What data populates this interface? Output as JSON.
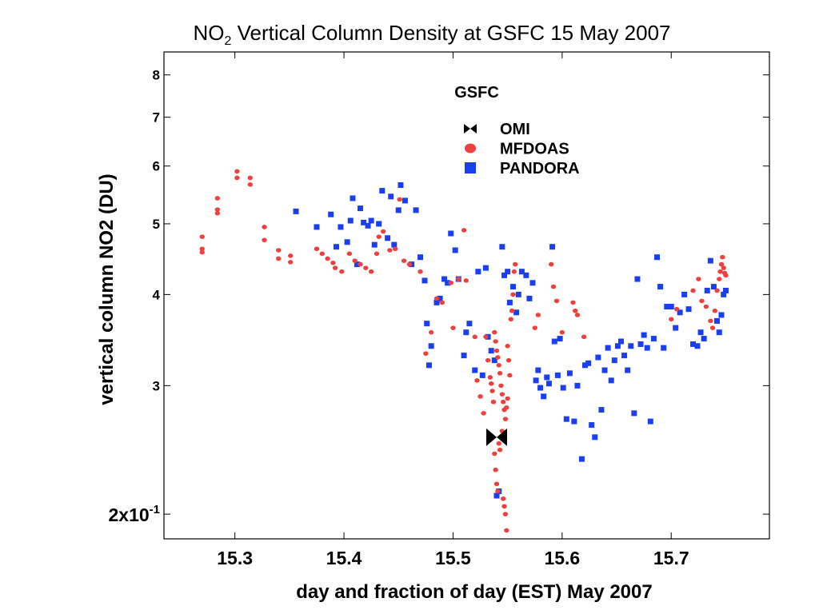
{
  "chart_data": {
    "type": "scatter",
    "title": "NO2 Vertical Column Density at GSFC   15 May 2007",
    "title_parts": {
      "pre": "NO",
      "sub": "2",
      "post": " Vertical Column Density at GSFC   15 May 2007"
    },
    "xlabel": "day and fraction of day (EST) May 2007",
    "ylabel": "vertical column NO2 (DU)",
    "xlim": [
      15.235,
      15.79
    ],
    "ylim": [
      1.85,
      8.6
    ],
    "y_scale": "log",
    "grid": false,
    "legend_title": "GSFC",
    "legend_position": "top-center",
    "x_ticks": [
      {
        "value": 15.3,
        "label": "15.3"
      },
      {
        "value": 15.4,
        "label": "15.4"
      },
      {
        "value": 15.5,
        "label": "15.5"
      },
      {
        "value": 15.6,
        "label": "15.6"
      },
      {
        "value": 15.7,
        "label": "15.7"
      }
    ],
    "y_ticks": [
      {
        "value": 2,
        "label": "2x10",
        "sup": "-1"
      },
      {
        "value": 3,
        "label": "3"
      },
      {
        "value": 4,
        "label": "4"
      },
      {
        "value": 5,
        "label": "5"
      },
      {
        "value": 6,
        "label": "6"
      },
      {
        "value": 7,
        "label": "7"
      },
      {
        "value": 8,
        "label": "8"
      }
    ],
    "series": [
      {
        "name": "OMI",
        "marker": "bowtie",
        "color": "#000000",
        "points": [
          [
            15.54,
            2.55
          ]
        ]
      },
      {
        "name": "MFDOAS",
        "marker": "circle",
        "color": "#ef4040",
        "points": [
          [
            15.27,
            4.8
          ],
          [
            15.27,
            4.62
          ],
          [
            15.27,
            4.57
          ],
          [
            15.284,
            5.42
          ],
          [
            15.284,
            5.23
          ],
          [
            15.284,
            5.17
          ],
          [
            15.302,
            5.9
          ],
          [
            15.302,
            5.78
          ],
          [
            15.314,
            5.78
          ],
          [
            15.314,
            5.66
          ],
          [
            15.327,
            4.95
          ],
          [
            15.327,
            4.75
          ],
          [
            15.34,
            4.6
          ],
          [
            15.34,
            4.48
          ],
          [
            15.351,
            4.52
          ],
          [
            15.351,
            4.43
          ],
          [
            15.375,
            4.62
          ],
          [
            15.38,
            4.55
          ],
          [
            15.385,
            4.48
          ],
          [
            15.39,
            4.42
          ],
          [
            15.392,
            4.35
          ],
          [
            15.398,
            4.3
          ],
          [
            15.405,
            4.55
          ],
          [
            15.41,
            4.45
          ],
          [
            15.415,
            4.4
          ],
          [
            15.42,
            4.35
          ],
          [
            15.425,
            4.3
          ],
          [
            15.43,
            4.55
          ],
          [
            15.432,
            4.8
          ],
          [
            15.436,
            4.88
          ],
          [
            15.442,
            4.6
          ],
          [
            15.447,
            4.62
          ],
          [
            15.451,
            5.4
          ],
          [
            15.455,
            4.45
          ],
          [
            15.46,
            4.4
          ],
          [
            15.47,
            4.3
          ],
          [
            15.475,
            3.32
          ],
          [
            15.48,
            3.55
          ],
          [
            15.485,
            3.95
          ],
          [
            15.49,
            3.9
          ],
          [
            15.498,
            4.15
          ],
          [
            15.5,
            3.6
          ],
          [
            15.505,
            4.2
          ],
          [
            15.51,
            4.9
          ],
          [
            15.512,
            4.18
          ],
          [
            15.52,
            3.5
          ],
          [
            15.522,
            3.05
          ],
          [
            15.525,
            2.9
          ],
          [
            15.528,
            2.75
          ],
          [
            15.53,
            3.5
          ],
          [
            15.532,
            3.25
          ],
          [
            15.534,
            3.08
          ],
          [
            15.535,
            3.02
          ],
          [
            15.536,
            2.95
          ],
          [
            15.537,
            2.85
          ],
          [
            15.538,
            2.42
          ],
          [
            15.539,
            2.3
          ],
          [
            15.54,
            2.2
          ],
          [
            15.541,
            2.15
          ],
          [
            15.542,
            2.5
          ],
          [
            15.543,
            2.45
          ],
          [
            15.544,
            2.55
          ],
          [
            15.545,
            2.6
          ],
          [
            15.546,
            2.1
          ],
          [
            15.547,
            2.05
          ],
          [
            15.548,
            2.0
          ],
          [
            15.549,
            1.9
          ],
          [
            15.55,
            3.4
          ],
          [
            15.551,
            3.25
          ],
          [
            15.552,
            3.1
          ],
          [
            15.553,
            3.7
          ],
          [
            15.554,
            3.8
          ],
          [
            15.555,
            4.0
          ],
          [
            15.556,
            4.3
          ],
          [
            15.557,
            4.4
          ],
          [
            15.538,
            3.55
          ],
          [
            15.539,
            3.45
          ],
          [
            15.54,
            3.35
          ],
          [
            15.541,
            3.28
          ],
          [
            15.542,
            3.2
          ],
          [
            15.543,
            3.12
          ],
          [
            15.544,
            3.0
          ],
          [
            15.545,
            2.92
          ],
          [
            15.546,
            2.85
          ],
          [
            15.547,
            2.78
          ],
          [
            15.548,
            2.7
          ],
          [
            15.549,
            2.8
          ],
          [
            15.55,
            2.88
          ],
          [
            15.575,
            3.6
          ],
          [
            15.578,
            3.75
          ],
          [
            15.59,
            4.4
          ],
          [
            15.592,
            4.1
          ],
          [
            15.595,
            3.92
          ],
          [
            15.6,
            3.55
          ],
          [
            15.61,
            3.9
          ],
          [
            15.612,
            3.8
          ],
          [
            15.614,
            3.75
          ],
          [
            15.62,
            3.5
          ],
          [
            15.7,
            3.7
          ],
          [
            15.705,
            3.82
          ],
          [
            15.72,
            4.05
          ],
          [
            15.725,
            4.2
          ],
          [
            15.728,
            3.92
          ],
          [
            15.732,
            3.85
          ],
          [
            15.736,
            3.68
          ],
          [
            15.738,
            3.6
          ],
          [
            15.74,
            3.8
          ],
          [
            15.742,
            4.05
          ],
          [
            15.744,
            4.2
          ],
          [
            15.745,
            4.3
          ],
          [
            15.746,
            4.4
          ],
          [
            15.747,
            4.5
          ],
          [
            15.748,
            4.35
          ],
          [
            15.749,
            4.28
          ],
          [
            15.75,
            4.25
          ]
        ]
      },
      {
        "name": "PANDORA",
        "marker": "square",
        "color": "#1a3ff0",
        "points": [
          [
            15.356,
            5.2
          ],
          [
            15.375,
            4.95
          ],
          [
            15.388,
            5.15
          ],
          [
            15.393,
            4.65
          ],
          [
            15.397,
            4.95
          ],
          [
            15.403,
            4.72
          ],
          [
            15.406,
            5.05
          ],
          [
            15.408,
            5.42
          ],
          [
            15.412,
            4.4
          ],
          [
            15.415,
            5.25
          ],
          [
            15.418,
            5.02
          ],
          [
            15.422,
            4.97
          ],
          [
            15.425,
            5.05
          ],
          [
            15.428,
            4.68
          ],
          [
            15.432,
            5.0
          ],
          [
            15.435,
            5.55
          ],
          [
            15.44,
            4.78
          ],
          [
            15.443,
            5.45
          ],
          [
            15.446,
            4.68
          ],
          [
            15.45,
            5.22
          ],
          [
            15.452,
            5.65
          ],
          [
            15.456,
            5.38
          ],
          [
            15.462,
            4.4
          ],
          [
            15.466,
            5.22
          ],
          [
            15.47,
            4.5
          ],
          [
            15.474,
            4.18
          ],
          [
            15.476,
            3.65
          ],
          [
            15.478,
            3.2
          ],
          [
            15.48,
            3.4
          ],
          [
            15.485,
            3.9
          ],
          [
            15.488,
            3.95
          ],
          [
            15.492,
            4.2
          ],
          [
            15.495,
            4.15
          ],
          [
            15.498,
            4.85
          ],
          [
            15.502,
            4.6
          ],
          [
            15.505,
            4.2
          ],
          [
            15.51,
            3.3
          ],
          [
            15.512,
            3.55
          ],
          [
            15.515,
            3.65
          ],
          [
            15.52,
            3.15
          ],
          [
            15.523,
            4.3
          ],
          [
            15.527,
            3.1
          ],
          [
            15.53,
            4.35
          ],
          [
            15.532,
            3.5
          ],
          [
            15.535,
            3.35
          ],
          [
            15.538,
            3.25
          ],
          [
            15.54,
            2.12
          ],
          [
            15.542,
            2.15
          ],
          [
            15.545,
            4.65
          ],
          [
            15.547,
            4.25
          ],
          [
            15.55,
            4.3
          ],
          [
            15.552,
            3.9
          ],
          [
            15.555,
            4.1
          ],
          [
            15.558,
            3.78
          ],
          [
            15.56,
            4.0
          ],
          [
            15.563,
            4.3
          ],
          [
            15.567,
            4.25
          ],
          [
            15.57,
            3.95
          ],
          [
            15.573,
            4.15
          ],
          [
            15.576,
            3.05
          ],
          [
            15.578,
            3.15
          ],
          [
            15.58,
            2.98
          ],
          [
            15.583,
            2.9
          ],
          [
            15.586,
            3.08
          ],
          [
            15.588,
            3.02
          ],
          [
            15.591,
            4.65
          ],
          [
            15.593,
            3.45
          ],
          [
            15.596,
            3.1
          ],
          [
            15.598,
            3.48
          ],
          [
            15.601,
            2.98
          ],
          [
            15.604,
            2.7
          ],
          [
            15.607,
            3.12
          ],
          [
            15.611,
            2.68
          ],
          [
            15.614,
            3.0
          ],
          [
            15.618,
            2.38
          ],
          [
            15.621,
            3.2
          ],
          [
            15.624,
            3.22
          ],
          [
            15.627,
            2.65
          ],
          [
            15.63,
            2.55
          ],
          [
            15.633,
            3.28
          ],
          [
            15.636,
            2.78
          ],
          [
            15.639,
            3.15
          ],
          [
            15.642,
            3.38
          ],
          [
            15.645,
            3.05
          ],
          [
            15.648,
            3.25
          ],
          [
            15.651,
            3.4
          ],
          [
            15.654,
            3.45
          ],
          [
            15.657,
            3.3
          ],
          [
            15.66,
            3.15
          ],
          [
            15.663,
            3.4
          ],
          [
            15.666,
            2.75
          ],
          [
            15.669,
            4.2
          ],
          [
            15.672,
            3.42
          ],
          [
            15.675,
            3.52
          ],
          [
            15.678,
            3.38
          ],
          [
            15.681,
            2.68
          ],
          [
            15.684,
            3.48
          ],
          [
            15.687,
            4.5
          ],
          [
            15.69,
            4.1
          ],
          [
            15.693,
            3.38
          ],
          [
            15.696,
            3.85
          ],
          [
            15.7,
            3.85
          ],
          [
            15.704,
            3.6
          ],
          [
            15.708,
            3.78
          ],
          [
            15.712,
            4.0
          ],
          [
            15.716,
            3.82
          ],
          [
            15.72,
            3.42
          ],
          [
            15.724,
            3.4
          ],
          [
            15.727,
            3.55
          ],
          [
            15.73,
            3.48
          ],
          [
            15.733,
            4.05
          ],
          [
            15.736,
            4.45
          ],
          [
            15.739,
            4.1
          ],
          [
            15.742,
            3.68
          ],
          [
            15.744,
            3.55
          ],
          [
            15.746,
            3.75
          ],
          [
            15.748,
            4.0
          ],
          [
            15.75,
            4.05
          ]
        ]
      }
    ]
  }
}
